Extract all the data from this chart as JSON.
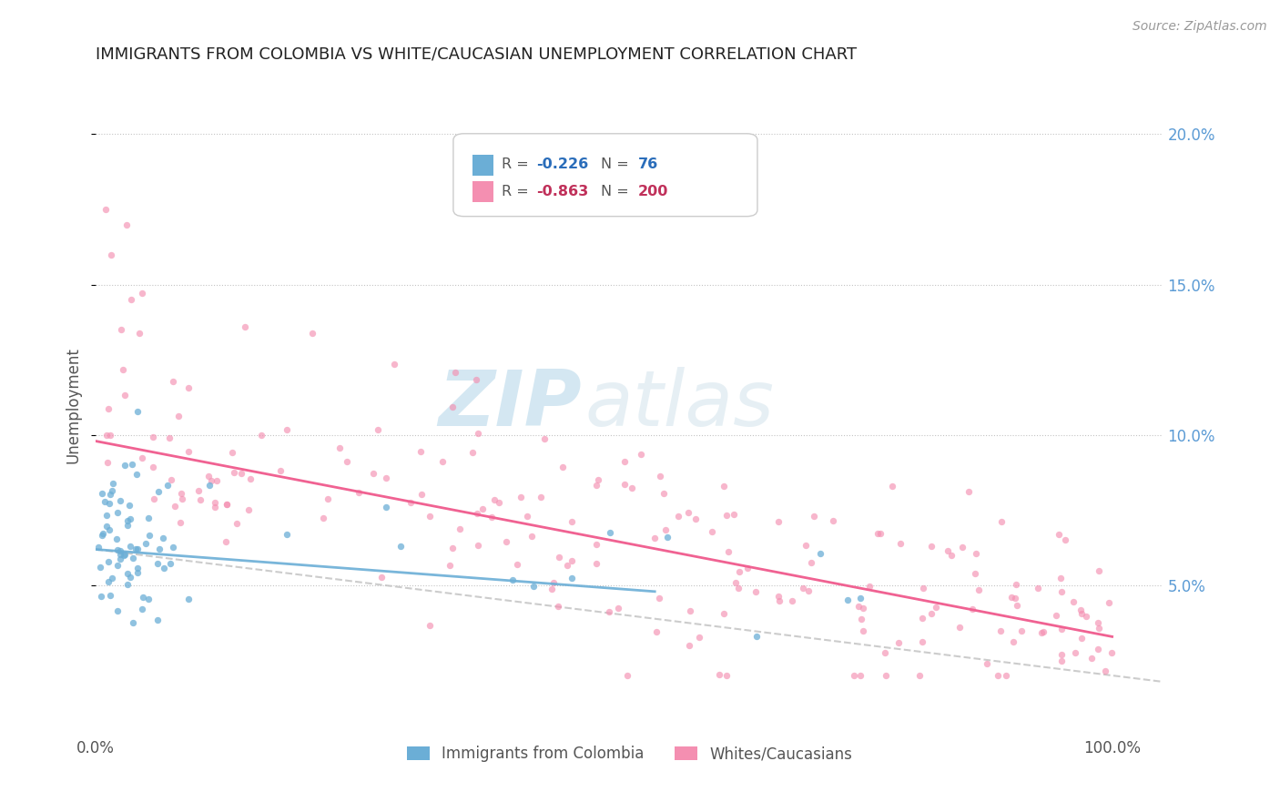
{
  "title": "IMMIGRANTS FROM COLOMBIA VS WHITE/CAUCASIAN UNEMPLOYMENT CORRELATION CHART",
  "source": "Source: ZipAtlas.com",
  "ylabel": "Unemployment",
  "watermark_zip": "ZIP",
  "watermark_atlas": "atlas",
  "legend_labels_bottom": [
    "Immigrants from Colombia",
    "Whites/Caucasians"
  ],
  "ylim": [
    0.0,
    0.22
  ],
  "xlim": [
    0.0,
    1.05
  ],
  "blue_R": -0.226,
  "blue_N": 76,
  "pink_R": -0.863,
  "pink_N": 200,
  "blue_color": "#6baed6",
  "pink_color": "#f48fb1",
  "blue_line_color": "#6baed6",
  "pink_line_color": "#f06292",
  "background_color": "#ffffff",
  "seed": 42
}
